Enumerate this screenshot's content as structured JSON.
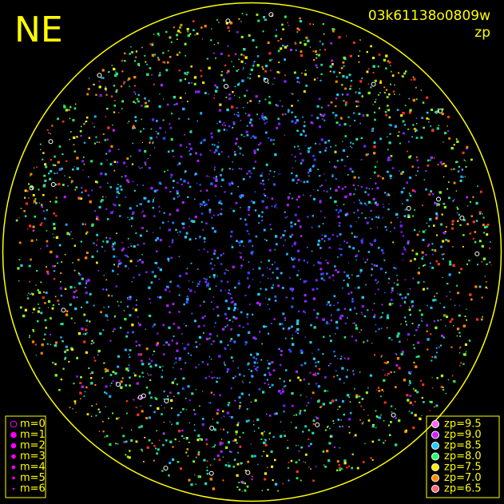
{
  "header": {
    "corner": "NE",
    "image_id": "03k61138o0809w",
    "quantity": "zp"
  },
  "magnitude_legend": {
    "color": "#ff00ff",
    "items": [
      "m=0",
      "m=1",
      "m=2",
      "m=3",
      "m=4",
      "m=5",
      "m=6"
    ]
  },
  "zp_legend": {
    "items": [
      {
        "label": "zp=9.5",
        "color": "#ff66ff"
      },
      {
        "label": "zp=9.0",
        "color": "#cc22ff"
      },
      {
        "label": "zp=8.5",
        "color": "#22ccff"
      },
      {
        "label": "zp=8.0",
        "color": "#22ff66"
      },
      {
        "label": "zp=7.5",
        "color": "#ffee00"
      },
      {
        "label": "zp=7.0",
        "color": "#ff8800"
      },
      {
        "label": "zp=6.5",
        "color": "#ff6677"
      }
    ]
  },
  "frame_color": "#ffff00"
}
